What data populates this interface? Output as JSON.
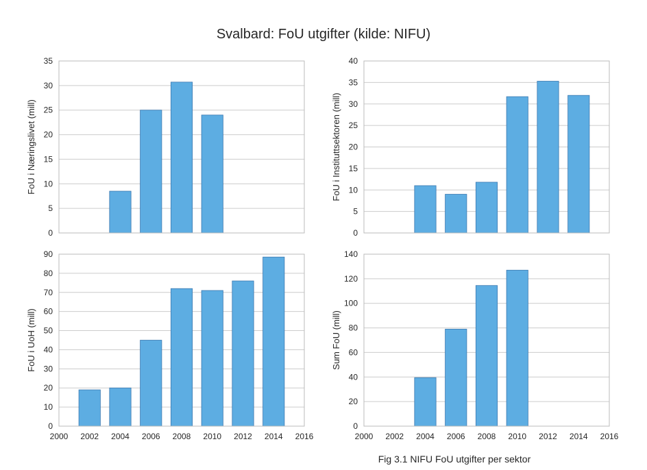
{
  "figure": {
    "title": "Svalbard: FoU utgifter (kilde: NIFU)",
    "caption": "Fig 3.1 NIFU FoU utgifter per sektor",
    "bar_color": "#5dade2",
    "bar_edge_color": "#3b78b0",
    "grid_color": "#cccccc"
  },
  "chart_data": [
    {
      "type": "bar",
      "ylabel": "FoU i Næringslivet (mill)",
      "xlim": [
        2000,
        2016
      ],
      "ylim": [
        0,
        35
      ],
      "yticks": [
        0,
        5,
        10,
        15,
        20,
        25,
        30,
        35
      ],
      "xticks": [],
      "grid": true,
      "x": [
        2004,
        2006,
        2008,
        2010
      ],
      "values": [
        8.5,
        25,
        30.7,
        24
      ]
    },
    {
      "type": "bar",
      "ylabel": "FoU i Instituttsektoren (mill)",
      "xlim": [
        2000,
        2016
      ],
      "ylim": [
        0,
        40
      ],
      "yticks": [
        0,
        5,
        10,
        15,
        20,
        25,
        30,
        35,
        40
      ],
      "xticks": [],
      "grid": true,
      "x": [
        2004,
        2006,
        2008,
        2010,
        2012,
        2014
      ],
      "values": [
        11,
        9,
        11.8,
        31.7,
        35.3,
        32
      ]
    },
    {
      "type": "bar",
      "ylabel": "FoU i UoH (mill)",
      "xlim": [
        2000,
        2016
      ],
      "ylim": [
        0,
        90
      ],
      "yticks": [
        0,
        10,
        20,
        30,
        40,
        50,
        60,
        70,
        80,
        90
      ],
      "xticks": [
        2000,
        2002,
        2004,
        2006,
        2008,
        2010,
        2012,
        2014,
        2016
      ],
      "grid": true,
      "x": [
        2002,
        2004,
        2006,
        2008,
        2010,
        2012,
        2014
      ],
      "values": [
        19,
        20,
        45,
        72,
        71,
        76,
        88.5
      ]
    },
    {
      "type": "bar",
      "ylabel": "Sum FoU (mill)",
      "xlim": [
        2000,
        2016
      ],
      "ylim": [
        0,
        140
      ],
      "yticks": [
        0,
        20,
        40,
        60,
        80,
        100,
        120,
        140
      ],
      "xticks": [
        2000,
        2002,
        2004,
        2006,
        2008,
        2010,
        2012,
        2014,
        2016
      ],
      "grid": true,
      "x": [
        2004,
        2006,
        2008,
        2010
      ],
      "values": [
        39.5,
        79,
        114.5,
        127
      ]
    }
  ]
}
